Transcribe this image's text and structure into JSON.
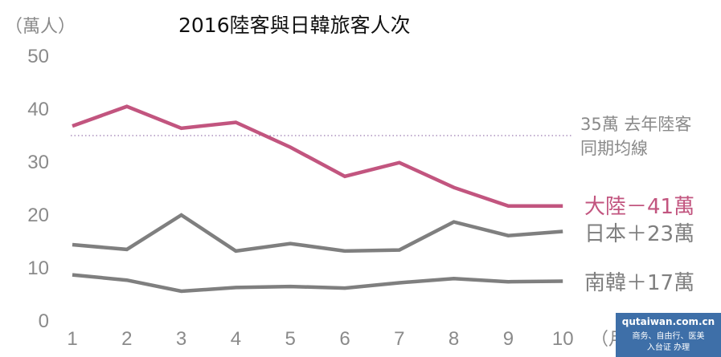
{
  "chart_data": {
    "type": "line",
    "title": "2016陸客與日韓旅客人次",
    "unit_label": "（萬人）",
    "x_unit_label": "（月）",
    "categories": [
      "1",
      "2",
      "3",
      "4",
      "5",
      "6",
      "7",
      "8",
      "9",
      "10"
    ],
    "ylim": [
      0,
      50
    ],
    "yticks": [
      "0",
      "10",
      "20",
      "30",
      "40",
      "50"
    ],
    "grid": false,
    "series": [
      {
        "name": "大陸",
        "change_label": "大陸－41萬",
        "color": "#c2557f",
        "values": [
          36.8,
          40.5,
          36.4,
          37.5,
          32.8,
          27.3,
          29.9,
          25.2,
          21.7,
          21.7
        ]
      },
      {
        "name": "日本",
        "change_label": "日本＋23萬",
        "color": "#7f7f7f",
        "values": [
          14.4,
          13.5,
          20.0,
          13.2,
          14.6,
          13.2,
          13.4,
          18.7,
          16.1,
          16.9
        ]
      },
      {
        "name": "南韓",
        "change_label": "南韓＋17萬",
        "color": "#7f7f7f",
        "values": [
          8.7,
          7.7,
          5.6,
          6.3,
          6.5,
          6.2,
          7.2,
          8.0,
          7.4,
          7.5
        ]
      }
    ],
    "reference_line": {
      "value": 35,
      "label_line1": "35萬  去年陸客",
      "label_line2": "同期均線",
      "color": "#9b7bb0"
    }
  },
  "watermark": {
    "url": "qutaiwan.com.cn",
    "line1": "商务、自由行、医美",
    "line2": "入台证 办理"
  }
}
